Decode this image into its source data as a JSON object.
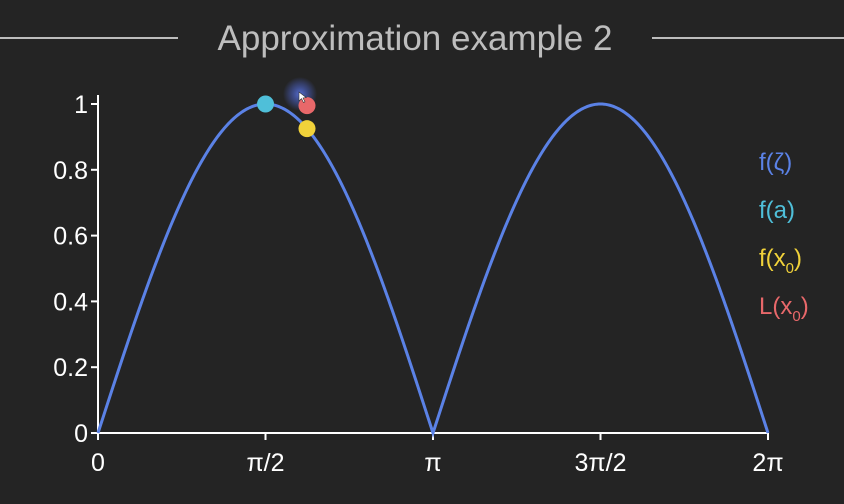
{
  "chart_data": {
    "type": "line",
    "title": "Approximation example 2",
    "xlabel": "",
    "ylabel": "",
    "xlim": [
      0,
      6.283185307
    ],
    "ylim": [
      0,
      1
    ],
    "grid": false,
    "legend_placement": "right",
    "x_ticks": [
      {
        "value": 0,
        "label": "0"
      },
      {
        "value": 1.570796327,
        "label": "π/2"
      },
      {
        "value": 3.141592654,
        "label": "π"
      },
      {
        "value": 4.71238898,
        "label": "3π/2"
      },
      {
        "value": 6.283185307,
        "label": "2π"
      }
    ],
    "y_ticks": [
      {
        "value": 0,
        "label": "0"
      },
      {
        "value": 0.2,
        "label": "0.2"
      },
      {
        "value": 0.4,
        "label": "0.4"
      },
      {
        "value": 0.6,
        "label": "0.6"
      },
      {
        "value": 0.8,
        "label": "0.8"
      },
      {
        "value": 1,
        "label": "1"
      }
    ],
    "curve": {
      "function": "|sin(x)|",
      "color": "#5b82e6"
    },
    "points": [
      {
        "x": 1.571,
        "y": 1.0,
        "color": "#4fbfd9"
      },
      {
        "x": 1.96,
        "y": 0.925,
        "color": "#f1d23a"
      },
      {
        "x": 1.96,
        "y": 0.995,
        "color": "#e8686a"
      }
    ],
    "legend": [
      {
        "base": "f(ζ)",
        "sub": "",
        "tail": "",
        "color": "#5b82e6"
      },
      {
        "base": "f(a)",
        "sub": "",
        "tail": "",
        "color": "#4fbfd9"
      },
      {
        "base": "f(x",
        "sub": "0",
        "tail": ")",
        "color": "#f1d23a"
      },
      {
        "base": "L(x",
        "sub": "0",
        "tail": ")",
        "color": "#e8686a"
      }
    ],
    "colors": {
      "background": "#242424",
      "axis": "#ffffff",
      "title": "#bdbdbd",
      "cursor_glow": "#4a5fc0"
    }
  }
}
